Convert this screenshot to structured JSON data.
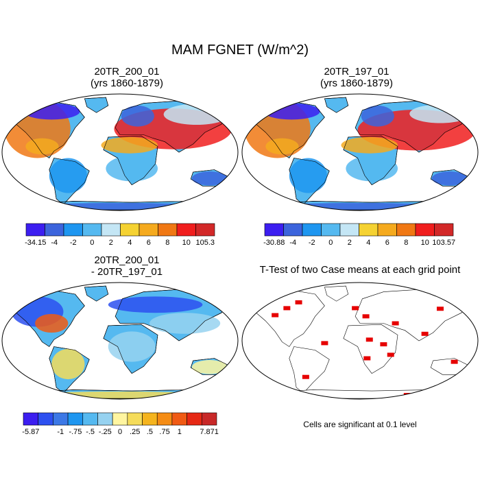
{
  "main_title": "MAM FGNET (W/m^2)",
  "colors": {
    "land": "#ffffff",
    "outline": "#000000",
    "significant": "#e60000"
  },
  "chart_data": [
    {
      "type": "map",
      "projection": "robinson",
      "title_line1": "20TR_200_01",
      "title_line2": "(yrs 1860-1879)",
      "colorbar": {
        "labels": [
          "-34.15",
          "-4",
          "-2",
          "0",
          "2",
          "4",
          "6",
          "8",
          "10",
          "105.3"
        ],
        "colors": [
          "#3c1ef0",
          "#3c64dc",
          "#1e96f0",
          "#55b9f0",
          "#c4e6f5",
          "#f5d232",
          "#f5aa1e",
          "#f07814",
          "#f01e1e",
          "#d22828"
        ]
      }
    },
    {
      "type": "map",
      "projection": "robinson",
      "title_line1": "20TR_197_01",
      "title_line2": "(yrs 1860-1879)",
      "colorbar": {
        "labels": [
          "-30.88",
          "-4",
          "-2",
          "0",
          "2",
          "4",
          "6",
          "8",
          "10",
          "103.57"
        ],
        "colors": [
          "#3c1ef0",
          "#3c64dc",
          "#1e96f0",
          "#55b9f0",
          "#c4e6f5",
          "#f5d232",
          "#f5aa1e",
          "#f07814",
          "#f01e1e",
          "#d22828"
        ]
      }
    },
    {
      "type": "map",
      "projection": "robinson",
      "title_line1": "20TR_200_01",
      "title_line2": "- 20TR_197_01",
      "colorbar": {
        "labels": [
          "-5.87",
          "",
          "-1",
          "-.75",
          "-.5",
          "-.25",
          "0",
          ".25",
          ".5",
          ".75",
          "1",
          "",
          "7.871"
        ],
        "colors": [
          "#3c1ef0",
          "#2d50f0",
          "#3c78e6",
          "#1e96f0",
          "#55b9f0",
          "#96d2f0",
          "#fff5a0",
          "#f5dc5a",
          "#f5b41e",
          "#f58c14",
          "#f05a14",
          "#e62814",
          "#c82828"
        ]
      }
    },
    {
      "type": "map",
      "projection": "robinson",
      "title_line1": "T-Test of two Case means at each grid point",
      "footnote": "Cells are significant at 0.1 level"
    }
  ]
}
